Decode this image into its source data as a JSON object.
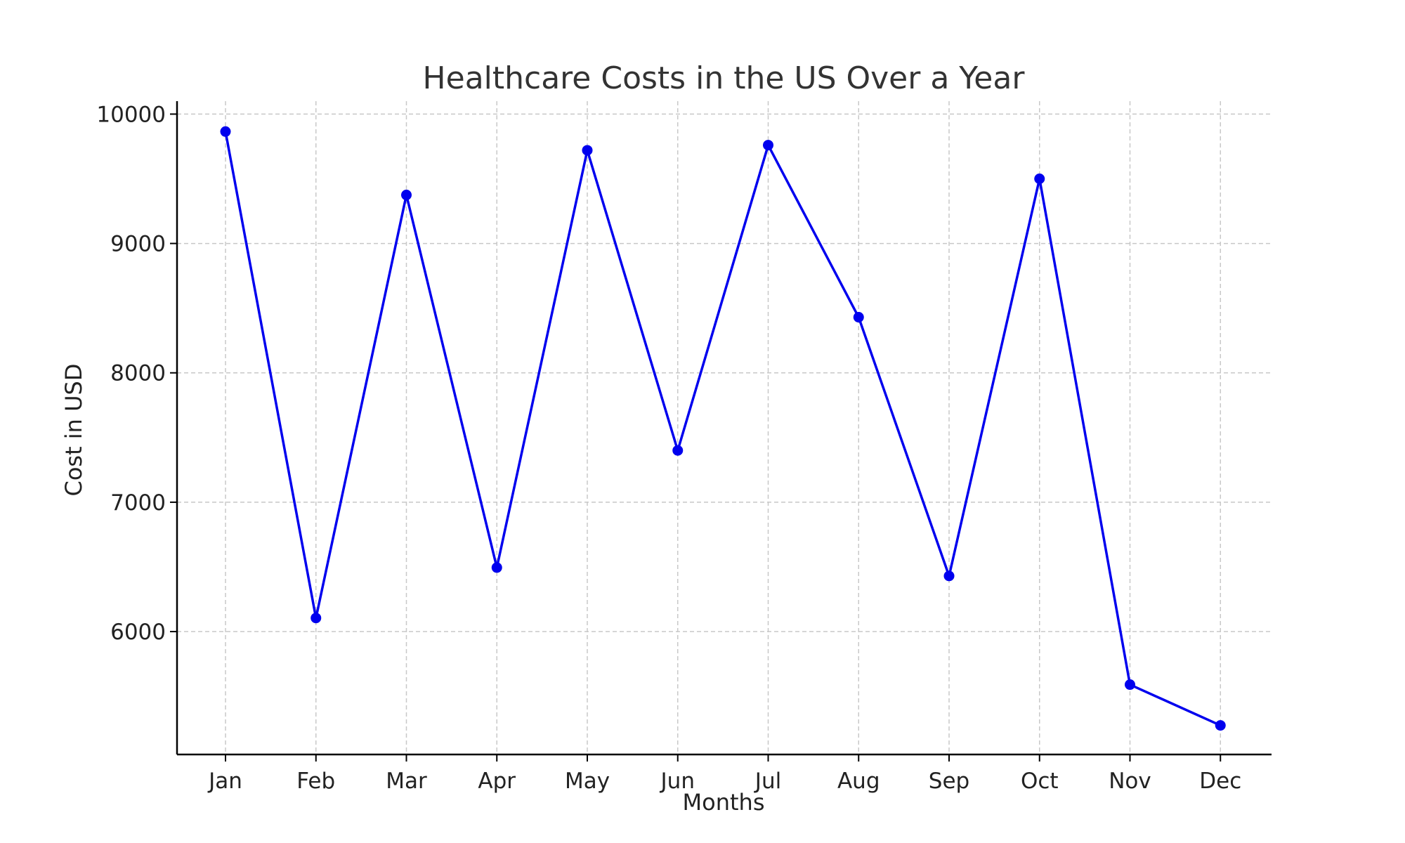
{
  "chart_data": {
    "type": "line",
    "title": "Healthcare Costs in the US Over a Year",
    "xlabel": "Months",
    "ylabel": "Cost in USD",
    "categories": [
      "Jan",
      "Feb",
      "Mar",
      "Apr",
      "May",
      "Jun",
      "Jul",
      "Aug",
      "Sep",
      "Oct",
      "Nov",
      "Dec"
    ],
    "series": [
      {
        "values": [
          9865,
          6105,
          9375,
          6495,
          9720,
          7400,
          9760,
          8430,
          6430,
          9500,
          5590,
          5275
        ],
        "color": "#0000ee"
      }
    ],
    "yticks": [
      6000,
      7000,
      8000,
      9000,
      10000
    ],
    "ylim": [
      5050,
      10100
    ],
    "grid": true,
    "marker": "circle"
  }
}
